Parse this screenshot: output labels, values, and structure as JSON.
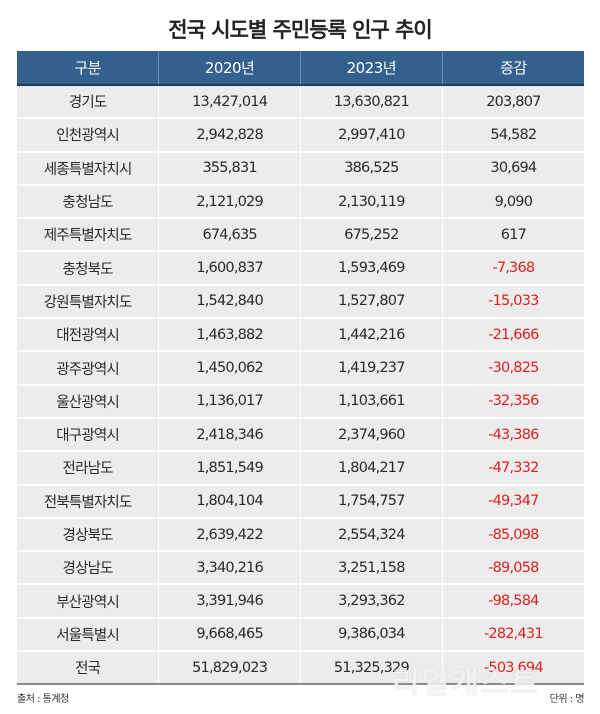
{
  "title": "전국 시도별 주민등록 인구 추이",
  "table": {
    "headers": [
      "구분",
      "2020년",
      "2023년",
      "증감"
    ],
    "rows": [
      {
        "region": "경기도",
        "y2020": "13,427,014",
        "y2023": "13,630,821",
        "change": "203,807",
        "negative": false
      },
      {
        "region": "인천광역시",
        "y2020": "2,942,828",
        "y2023": "2,997,410",
        "change": "54,582",
        "negative": false
      },
      {
        "region": "세종특별자치시",
        "y2020": "355,831",
        "y2023": "386,525",
        "change": "30,694",
        "negative": false
      },
      {
        "region": "충청남도",
        "y2020": "2,121,029",
        "y2023": "2,130,119",
        "change": "9,090",
        "negative": false
      },
      {
        "region": "제주특별자치도",
        "y2020": "674,635",
        "y2023": "675,252",
        "change": "617",
        "negative": false
      },
      {
        "region": "충청북도",
        "y2020": "1,600,837",
        "y2023": "1,593,469",
        "change": "-7,368",
        "negative": true
      },
      {
        "region": "강원특별자치도",
        "y2020": "1,542,840",
        "y2023": "1,527,807",
        "change": "-15,033",
        "negative": true
      },
      {
        "region": "대전광역시",
        "y2020": "1,463,882",
        "y2023": "1,442,216",
        "change": "-21,666",
        "negative": true
      },
      {
        "region": "광주광역시",
        "y2020": "1,450,062",
        "y2023": "1,419,237",
        "change": "-30,825",
        "negative": true
      },
      {
        "region": "울산광역시",
        "y2020": "1,136,017",
        "y2023": "1,103,661",
        "change": "-32,356",
        "negative": true
      },
      {
        "region": "대구광역시",
        "y2020": "2,418,346",
        "y2023": "2,374,960",
        "change": "-43,386",
        "negative": true
      },
      {
        "region": "전라남도",
        "y2020": "1,851,549",
        "y2023": "1,804,217",
        "change": "-47,332",
        "negative": true
      },
      {
        "region": "전북특별자치도",
        "y2020": "1,804,104",
        "y2023": "1,754,757",
        "change": "-49,347",
        "negative": true
      },
      {
        "region": "경상북도",
        "y2020": "2,639,422",
        "y2023": "2,554,324",
        "change": "-85,098",
        "negative": true
      },
      {
        "region": "경상남도",
        "y2020": "3,340,216",
        "y2023": "3,251,158",
        "change": "-89,058",
        "negative": true
      },
      {
        "region": "부산광역시",
        "y2020": "3,391,946",
        "y2023": "3,293,362",
        "change": "-98,584",
        "negative": true
      },
      {
        "region": "서울특별시",
        "y2020": "9,668,465",
        "y2023": "9,386,034",
        "change": "-282,431",
        "negative": true
      },
      {
        "region": "전국",
        "y2020": "51,829,023",
        "y2023": "51,325,329",
        "change": "-503,694",
        "negative": true
      }
    ]
  },
  "footer": {
    "source": "출처 : 통계청",
    "unit": "단위 : 명"
  },
  "watermark": "리얼캐스트",
  "colors": {
    "header_bg": "#33608f",
    "row_bg": "#ececec",
    "negative": "#e02020"
  }
}
